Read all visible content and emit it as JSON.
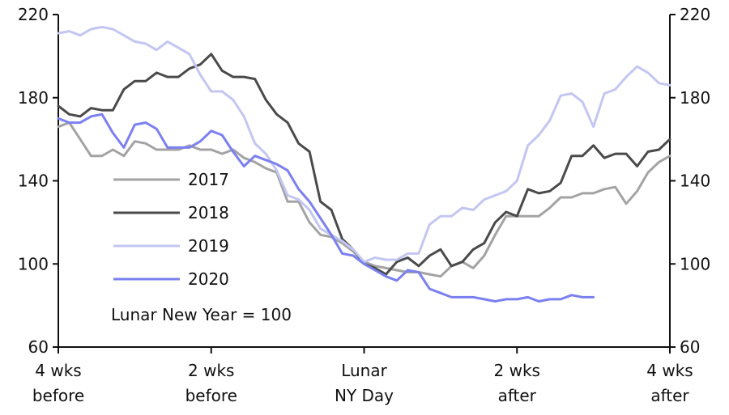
{
  "chart_data": {
    "type": "line",
    "title": "",
    "xlabel": "",
    "ylabel": "",
    "ylim": [
      60,
      220
    ],
    "xlim": [
      -28,
      28
    ],
    "y_ticks": [
      60,
      100,
      140,
      180,
      220
    ],
    "y_tick_labels": [
      "60",
      "100",
      "140",
      "180",
      "220"
    ],
    "x_ticks": [
      {
        "value": -28,
        "lines": [
          "4 wks",
          "before"
        ]
      },
      {
        "value": -14,
        "lines": [
          "2 wks",
          "before"
        ]
      },
      {
        "value": 0,
        "lines": [
          "Lunar",
          "NY Day"
        ]
      },
      {
        "value": 14,
        "lines": [
          "2 wks",
          "after"
        ]
      },
      {
        "value": 28,
        "lines": [
          "4 wks",
          "after"
        ]
      }
    ],
    "annotation": "Lunar New Year = 100",
    "grid": false,
    "legend_position": "center-left",
    "series": [
      {
        "name": "2017",
        "color": "#a3a3a3",
        "x": [
          -28,
          -27,
          -26,
          -25,
          -24,
          -23,
          -22,
          -21,
          -20,
          -19,
          -18,
          -17,
          -16,
          -15,
          -14,
          -13,
          -12,
          -11,
          -10,
          -9,
          -8,
          -7,
          -6,
          -5,
          -4,
          -3,
          -2,
          -1,
          0,
          1,
          2,
          3,
          4,
          5,
          6,
          7,
          8,
          9,
          10,
          11,
          12,
          13,
          14,
          15,
          16,
          17,
          18,
          19,
          20,
          21,
          22,
          23,
          24,
          25,
          26,
          27,
          28
        ],
        "values": [
          166,
          168,
          160,
          152,
          152,
          155,
          152,
          159,
          158,
          155,
          155,
          155,
          157,
          155,
          155,
          153,
          155,
          151,
          149,
          146,
          144,
          130,
          130,
          120,
          114,
          113,
          110,
          106,
          101,
          99,
          98,
          97,
          96,
          96,
          95,
          94,
          99,
          101,
          98,
          104,
          114,
          123,
          123,
          123,
          123,
          127,
          132,
          132,
          134,
          134,
          136,
          137,
          129,
          135,
          144,
          149,
          152
        ]
      },
      {
        "name": "2018",
        "color": "#4a4a4a",
        "x": [
          -28,
          -27,
          -26,
          -25,
          -24,
          -23,
          -22,
          -21,
          -20,
          -19,
          -18,
          -17,
          -16,
          -15,
          -14,
          -13,
          -12,
          -11,
          -10,
          -9,
          -8,
          -7,
          -6,
          -5,
          -4,
          -3,
          -2,
          -1,
          0,
          1,
          2,
          3,
          4,
          5,
          6,
          7,
          8,
          9,
          10,
          11,
          12,
          13,
          14,
          15,
          16,
          17,
          18,
          19,
          20,
          21,
          22,
          23,
          24,
          25,
          26,
          27,
          28
        ],
        "values": [
          176,
          172,
          171,
          175,
          174,
          174,
          184,
          188,
          188,
          192,
          190,
          190,
          194,
          196,
          201,
          193,
          190,
          190,
          189,
          179,
          172,
          168,
          158,
          154,
          130,
          126,
          112,
          107,
          100,
          98,
          95,
          101,
          103,
          99,
          104,
          107,
          99,
          101,
          107,
          110,
          120,
          125,
          123,
          136,
          134,
          135,
          139,
          152,
          152,
          157,
          151,
          153,
          153,
          147,
          154,
          155,
          160
        ]
      },
      {
        "name": "2019",
        "color": "#c3c6f2",
        "x": [
          -28,
          -27,
          -26,
          -25,
          -24,
          -23,
          -22,
          -21,
          -20,
          -19,
          -18,
          -17,
          -16,
          -15,
          -14,
          -13,
          -12,
          -11,
          -10,
          -9,
          -8,
          -7,
          -6,
          -5,
          -4,
          -3,
          -2,
          -1,
          0,
          1,
          2,
          3,
          4,
          5,
          6,
          7,
          8,
          9,
          10,
          11,
          12,
          13,
          14,
          15,
          16,
          17,
          18,
          19,
          20,
          21,
          22,
          23,
          24,
          25,
          26,
          27,
          28
        ],
        "values": [
          211,
          212,
          210,
          213,
          214,
          213,
          210,
          207,
          206,
          203,
          207,
          204,
          201,
          191,
          183,
          183,
          179,
          171,
          158,
          153,
          145,
          133,
          131,
          126,
          117,
          114,
          111,
          107,
          101,
          103,
          102,
          102,
          105,
          105,
          119,
          123,
          123,
          127,
          126,
          131,
          133,
          135,
          140,
          157,
          162,
          169,
          181,
          182,
          178,
          166,
          182,
          184,
          190,
          195,
          192,
          187,
          186
        ]
      },
      {
        "name": "2020",
        "color": "#7b80f0",
        "x": [
          -28,
          -27,
          -26,
          -25,
          -24,
          -23,
          -22,
          -21,
          -20,
          -19,
          -18,
          -17,
          -16,
          -15,
          -14,
          -13,
          -12,
          -11,
          -10,
          -9,
          -8,
          -7,
          -6,
          -5,
          -4,
          -3,
          -2,
          -1,
          0,
          1,
          2,
          3,
          4,
          5,
          6,
          7,
          8,
          9,
          10,
          11,
          12,
          13,
          14,
          15,
          16,
          17,
          18,
          19,
          20,
          21
        ],
        "values": [
          170,
          168,
          168,
          171,
          172,
          163,
          156,
          167,
          168,
          165,
          156,
          156,
          156,
          159,
          164,
          162,
          154,
          147,
          152,
          150,
          148,
          145,
          136,
          130,
          122,
          114,
          105,
          104,
          100,
          97,
          94,
          92,
          97,
          96,
          88,
          86,
          84,
          84,
          84,
          83,
          82,
          83,
          83,
          84,
          82,
          83,
          83,
          85,
          84,
          84
        ]
      }
    ]
  }
}
